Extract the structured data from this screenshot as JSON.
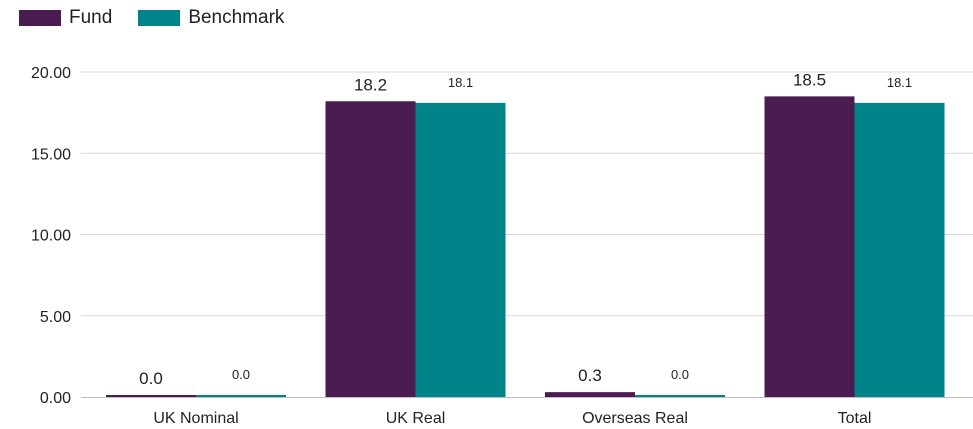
{
  "chart_data": {
    "type": "bar",
    "categories": [
      "UK Nominal",
      "UK Real",
      "Overseas Real",
      "Total"
    ],
    "series": [
      {
        "name": "Fund",
        "color": "#4b1c51",
        "values": [
          0.0,
          18.2,
          0.3,
          18.5
        ],
        "labels": [
          "0.0",
          "18.2",
          "0.3",
          "18.5"
        ]
      },
      {
        "name": "Benchmark",
        "color": "#00848a",
        "values": [
          0.0,
          18.1,
          0.0,
          18.1
        ],
        "labels": [
          "0.0",
          "18.1",
          "0.0",
          "18.1"
        ]
      }
    ],
    "yticks": [
      "0.00",
      "5.00",
      "10.00",
      "15.00",
      "20.00"
    ],
    "ylim": [
      0,
      20
    ],
    "grid": true,
    "legend": "top-left"
  }
}
